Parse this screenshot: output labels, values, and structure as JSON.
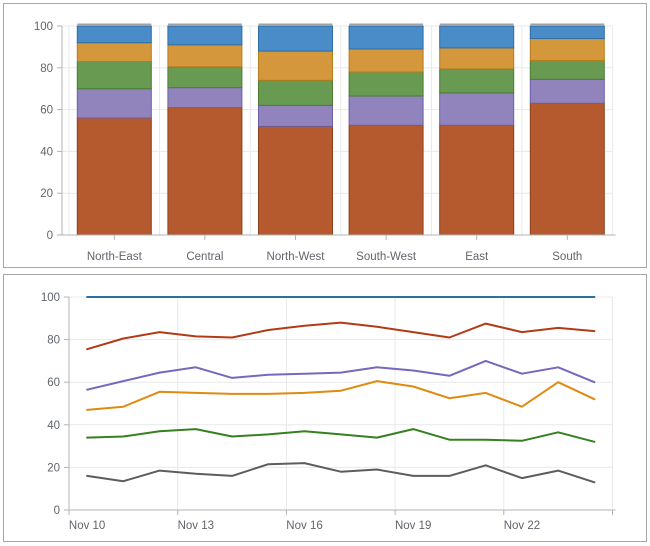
{
  "page": {
    "background_color": "#ffffff",
    "panel_border_color": "#a6a6a6",
    "axis_line_color": "#b3b3b3",
    "gridline_color": "#e8e8e8",
    "label_color": "#60646c"
  },
  "chart_data": [
    {
      "type": "bar",
      "variant": "full-stacked-vertical",
      "title": "",
      "xlabel": "",
      "ylabel": "",
      "categories": [
        "North-East",
        "Central",
        "North-West",
        "South-West",
        "East",
        "South"
      ],
      "series": [
        {
          "name": "rust",
          "color": "#b5592e",
          "border_color": "#8e421c",
          "values": [
            56,
            61,
            52,
            52.5,
            52.5,
            63
          ]
        },
        {
          "name": "purple",
          "color": "#9184bc",
          "border_color": "#6c5fa7",
          "values": [
            14,
            9.5,
            10,
            14,
            15.5,
            11.5
          ]
        },
        {
          "name": "green",
          "color": "#689a52",
          "border_color": "#4b7c33",
          "values": [
            13,
            10,
            12,
            11.5,
            11.5,
            9
          ]
        },
        {
          "name": "orange",
          "color": "#d4973c",
          "border_color": "#b97c1c",
          "values": [
            9,
            10.5,
            14,
            11,
            10,
            10.5
          ]
        },
        {
          "name": "blue",
          "color": "#4a8cc7",
          "border_color": "#2f6da6",
          "values": [
            8,
            9,
            12,
            11,
            10.5,
            6
          ]
        }
      ],
      "bar_top_cap_color": "#a2a2a2",
      "ylim": [
        0,
        100
      ],
      "yticks": [
        0,
        20,
        40,
        60,
        80,
        100
      ],
      "grid": true,
      "legend": "none"
    },
    {
      "type": "line",
      "title": "",
      "xlabel": "",
      "ylabel": "",
      "x": [
        "Nov 10",
        "Nov 11",
        "Nov 12",
        "Nov 13",
        "Nov 14",
        "Nov 15",
        "Nov 16",
        "Nov 17",
        "Nov 18",
        "Nov 19",
        "Nov 20",
        "Nov 21",
        "Nov 22",
        "Nov 23",
        "Nov 24"
      ],
      "x_tick_labels": [
        "Nov 10",
        "Nov 13",
        "Nov 16",
        "Nov 19",
        "Nov 22"
      ],
      "x_label_step": 3,
      "series": [
        {
          "name": "blue",
          "color": "#2d6f9e",
          "values": [
            100,
            100,
            100,
            100,
            100,
            100,
            100,
            100,
            100,
            100,
            100,
            100,
            100,
            100,
            100
          ]
        },
        {
          "name": "red",
          "color": "#b23a16",
          "values": [
            75.5,
            80.5,
            83.5,
            81.5,
            81,
            84.5,
            86.5,
            88,
            86,
            83.5,
            81,
            87.5,
            83.5,
            85.5,
            84
          ]
        },
        {
          "name": "purple",
          "color": "#7668bb",
          "values": [
            56.5,
            60.5,
            64.5,
            67,
            62,
            63.5,
            64,
            64.5,
            67,
            65.5,
            63,
            70,
            64,
            67,
            60
          ]
        },
        {
          "name": "orange",
          "color": "#df8a10",
          "values": [
            47,
            48.5,
            55.5,
            55,
            54.5,
            54.5,
            55,
            56,
            60.5,
            58,
            52.5,
            55,
            48.5,
            60,
            52
          ]
        },
        {
          "name": "green",
          "color": "#35801f",
          "values": [
            34,
            34.5,
            37,
            38,
            34.5,
            35.5,
            37,
            35.5,
            34,
            38,
            33,
            33,
            32.5,
            36.5,
            32
          ]
        },
        {
          "name": "gray",
          "color": "#5d5d5d",
          "values": [
            16,
            13.5,
            18.5,
            17,
            16,
            21.5,
            22,
            18,
            19,
            16,
            16,
            21,
            15,
            18.5,
            13
          ]
        }
      ],
      "ylim": [
        0,
        100
      ],
      "yticks": [
        0,
        20,
        40,
        60,
        80,
        100
      ],
      "grid": true,
      "legend": "none"
    }
  ]
}
